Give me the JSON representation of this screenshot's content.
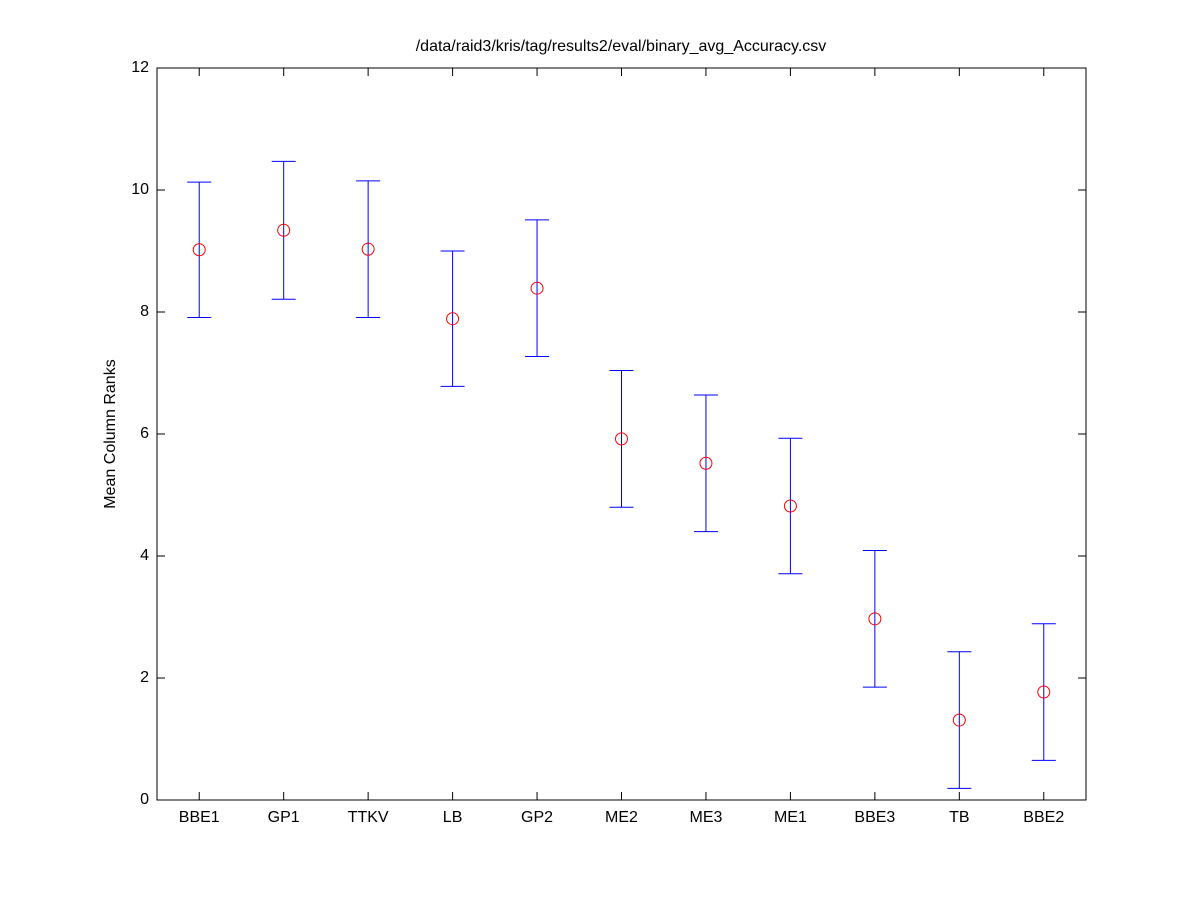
{
  "chart_data": {
    "type": "errorbar",
    "title": "/data/raid3/kris/tag/results2/eval/binary_avg_Accuracy.csv",
    "y_label": "Mean Column Ranks",
    "categories": [
      "BBE1",
      "GP1",
      "TTKV",
      "LB",
      "GP2",
      "ME2",
      "ME3",
      "ME1",
      "BBE3",
      "TB",
      "BBE2"
    ],
    "values": [
      9.02,
      9.34,
      9.03,
      7.89,
      8.39,
      5.92,
      5.52,
      4.82,
      2.97,
      1.31,
      1.77
    ],
    "errors": [
      1.11,
      1.13,
      1.12,
      1.11,
      1.12,
      1.12,
      1.12,
      1.11,
      1.12,
      1.12,
      1.12
    ],
    "color": "#ff0000",
    "error_color": "#0000ff",
    "ylim": [
      0,
      12
    ],
    "yticks": [
      0,
      2,
      4,
      6,
      8,
      10,
      12
    ],
    "grid": false
  }
}
